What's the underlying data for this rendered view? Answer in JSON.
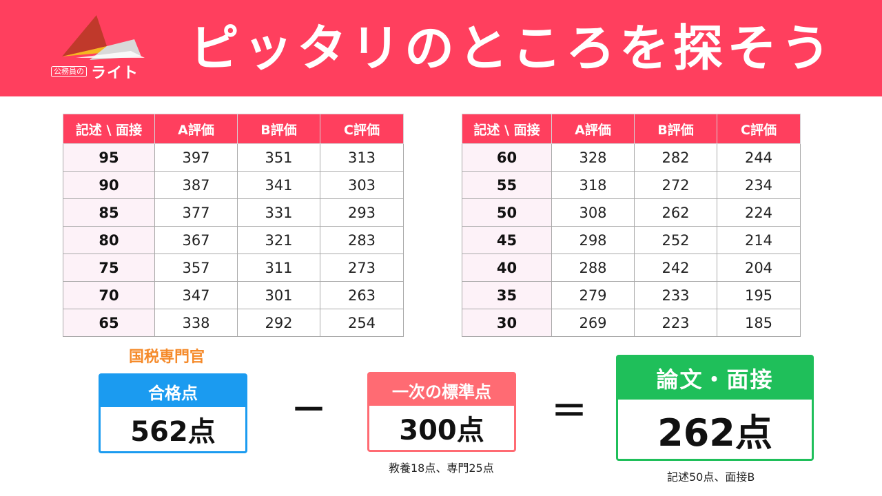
{
  "header": {
    "title": "ピッタリのところを探そう",
    "logo_small": "公務員の",
    "logo_big": "ライト"
  },
  "table_left": {
    "headers": [
      "記述 \\ 面接",
      "A評価",
      "B評価",
      "C評価"
    ],
    "rows": [
      [
        "95",
        "397",
        "351",
        "313"
      ],
      [
        "90",
        "387",
        "341",
        "303"
      ],
      [
        "85",
        "377",
        "331",
        "293"
      ],
      [
        "80",
        "367",
        "321",
        "283"
      ],
      [
        "75",
        "357",
        "311",
        "273"
      ],
      [
        "70",
        "347",
        "301",
        "263"
      ],
      [
        "65",
        "338",
        "292",
        "254"
      ]
    ]
  },
  "table_right": {
    "headers": [
      "記述 \\ 面接",
      "A評価",
      "B評価",
      "C評価"
    ],
    "rows": [
      [
        "60",
        "328",
        "282",
        "244"
      ],
      [
        "55",
        "318",
        "272",
        "234"
      ],
      [
        "50",
        "308",
        "262",
        "224"
      ],
      [
        "45",
        "298",
        "252",
        "214"
      ],
      [
        "40",
        "288",
        "242",
        "204"
      ],
      [
        "35",
        "279",
        "233",
        "195"
      ],
      [
        "30",
        "269",
        "223",
        "185"
      ]
    ]
  },
  "formula": {
    "exam_name": "国税専門官",
    "pass": {
      "label": "合格点",
      "value": "562点"
    },
    "minus": "－",
    "standard": {
      "label": "一次の標準点",
      "value": "300点",
      "note": "教養18点、専門25点"
    },
    "equals": "＝",
    "result": {
      "label": "論文・面接",
      "value": "262点",
      "note": "記述50点、面接B"
    }
  },
  "colors": {
    "header_bg": "#ff3f5e",
    "pass_blue": "#1b9bf0",
    "standard_red": "#ff6b73",
    "result_green": "#1fbf5a",
    "exam_orange": "#f58a2a"
  }
}
